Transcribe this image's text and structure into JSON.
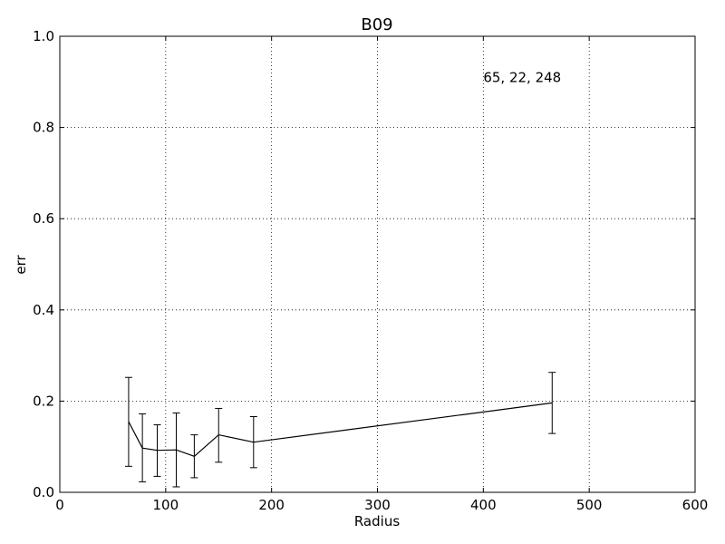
{
  "chart_data": {
    "type": "line",
    "title": "B09",
    "xlabel": "Radius",
    "ylabel": "err",
    "xlim": [
      0,
      600
    ],
    "ylim": [
      0.0,
      1.0
    ],
    "xticks": [
      0,
      100,
      200,
      300,
      400,
      500,
      600
    ],
    "yticks": [
      0.0,
      0.2,
      0.4,
      0.6,
      0.8,
      1.0
    ],
    "xtick_labels": [
      "0",
      "100",
      "200",
      "300",
      "400",
      "500",
      "600"
    ],
    "ytick_labels": [
      "0.0",
      "0.2",
      "0.4",
      "0.6",
      "0.8",
      "1.0"
    ],
    "grid": true,
    "annotation": {
      "text": "65, 22, 248",
      "x": 400,
      "y": 0.9
    },
    "series": [
      {
        "x": [
          65,
          78,
          92,
          110,
          127,
          150,
          183,
          465
        ],
        "y": [
          0.155,
          0.097,
          0.092,
          0.093,
          0.079,
          0.126,
          0.11,
          0.196
        ],
        "err_low": [
          0.057,
          0.023,
          0.035,
          0.012,
          0.032,
          0.066,
          0.054,
          0.129
        ],
        "err_high": [
          0.252,
          0.172,
          0.148,
          0.174,
          0.126,
          0.184,
          0.166,
          0.263
        ]
      }
    ],
    "colors": {
      "line": "#000000",
      "grid": "#000000"
    }
  }
}
